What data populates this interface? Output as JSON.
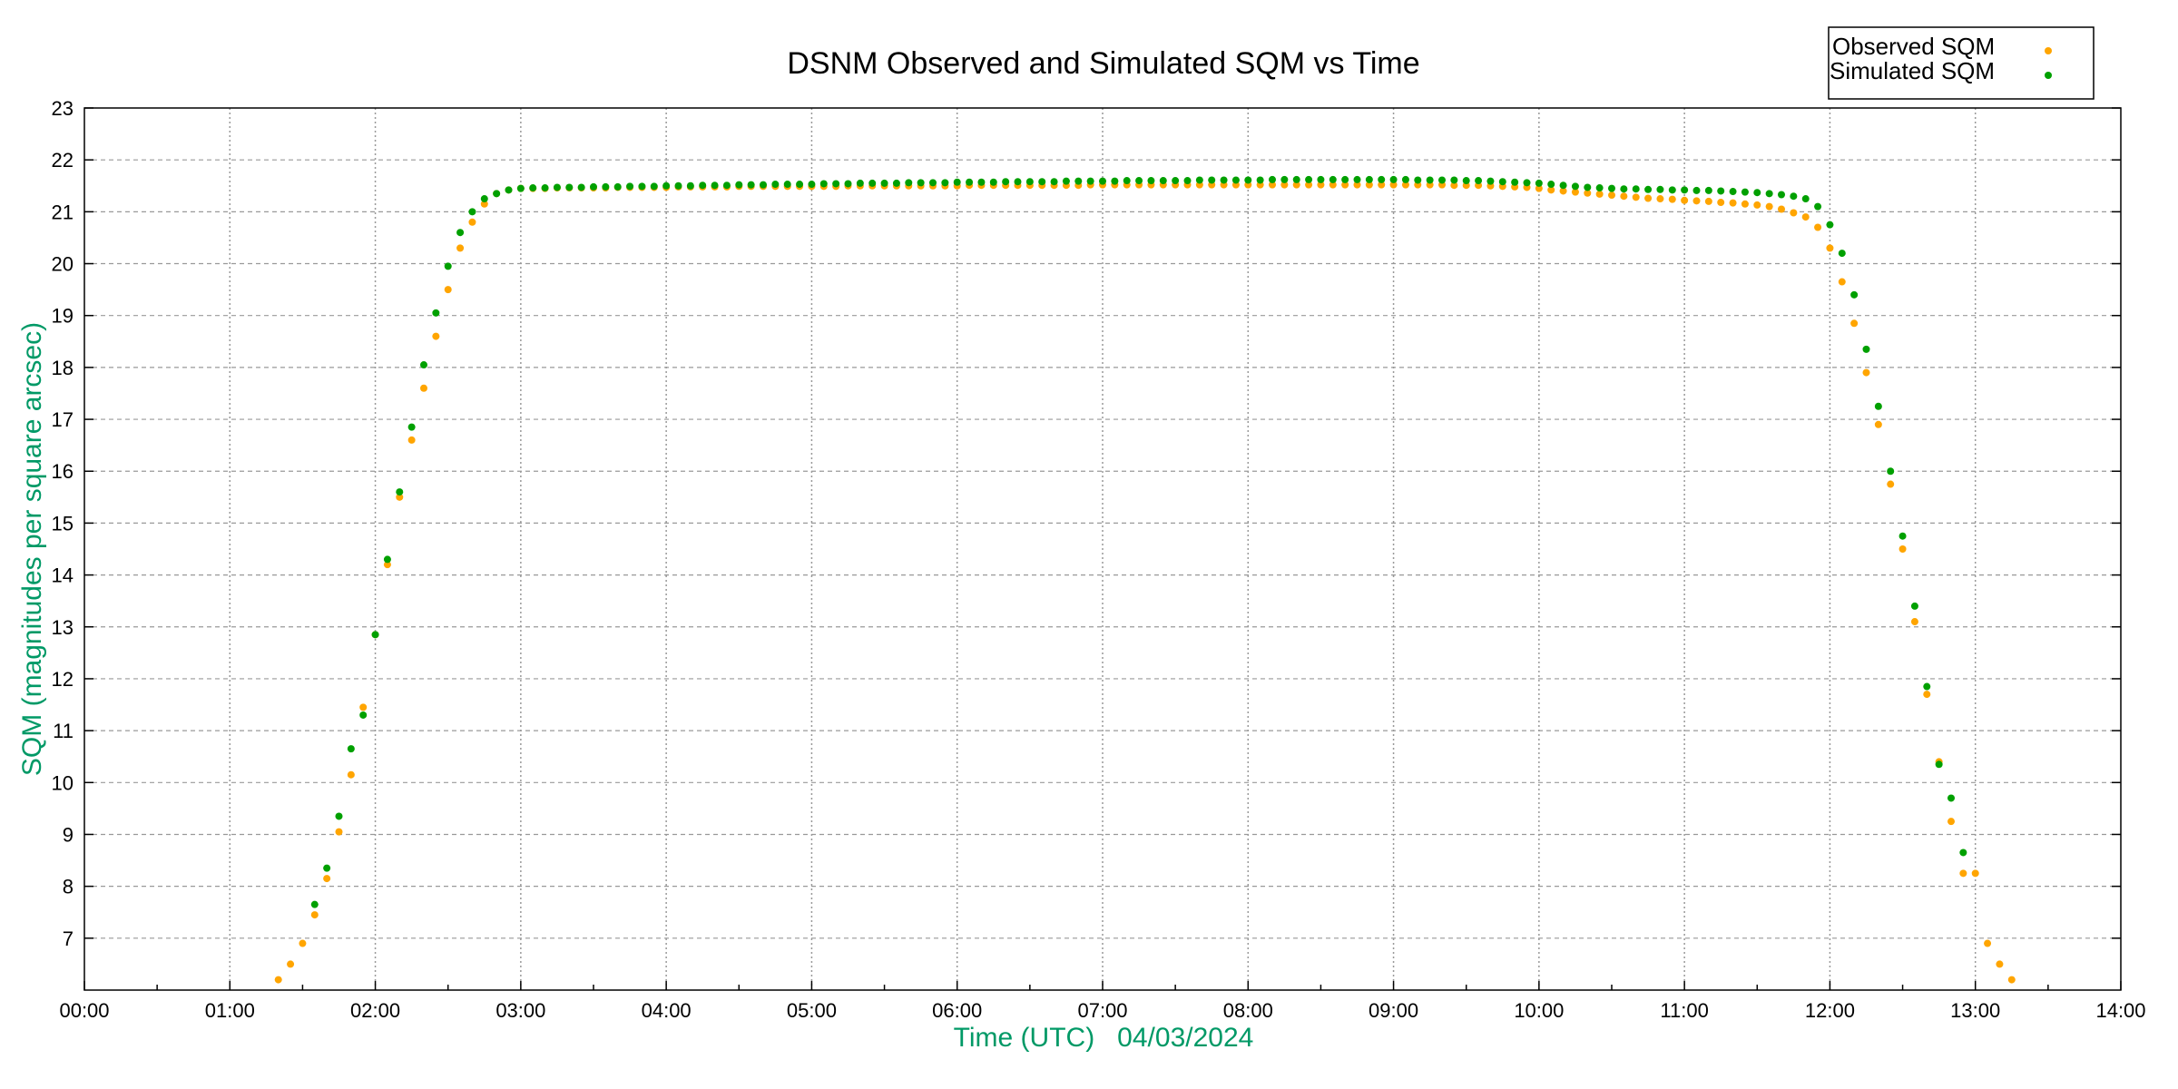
{
  "chart_data": {
    "type": "scatter",
    "title": "DSNM Observed and Simulated SQM vs Time",
    "xlabel": "Time (UTC)   04/03/2024",
    "ylabel": "SQM (magnitudes per square arcsec)",
    "xlim": [
      "00:00",
      "14:00"
    ],
    "ylim": [
      6,
      23
    ],
    "xticks": [
      "00:00",
      "01:00",
      "02:00",
      "03:00",
      "04:00",
      "05:00",
      "06:00",
      "07:00",
      "08:00",
      "09:00",
      "10:00",
      "11:00",
      "12:00",
      "13:00",
      "14:00"
    ],
    "yticks": [
      7,
      8,
      9,
      10,
      11,
      12,
      13,
      14,
      15,
      16,
      17,
      18,
      19,
      20,
      21,
      22,
      23
    ],
    "grid": true,
    "legend_position": "top-right",
    "label_color": "#009966",
    "series": [
      {
        "name": "Observed SQM",
        "color": "#FFA500",
        "x": [
          "01:20",
          "01:25",
          "01:30",
          "01:35",
          "01:40",
          "01:45",
          "01:50",
          "01:55",
          "02:00",
          "02:05",
          "02:10",
          "02:15",
          "02:20",
          "02:25",
          "02:30",
          "02:35",
          "02:40",
          "02:45",
          "02:50",
          "02:55",
          "03:00",
          "03:05",
          "03:10",
          "03:15",
          "03:20",
          "03:25",
          "03:30",
          "03:35",
          "03:40",
          "03:45",
          "03:50",
          "03:55",
          "04:00",
          "04:05",
          "04:10",
          "04:15",
          "04:20",
          "04:25",
          "04:30",
          "04:35",
          "04:40",
          "04:45",
          "04:50",
          "04:55",
          "05:00",
          "05:05",
          "05:10",
          "05:15",
          "05:20",
          "05:25",
          "05:30",
          "05:35",
          "05:40",
          "05:45",
          "05:50",
          "05:55",
          "06:00",
          "06:05",
          "06:10",
          "06:15",
          "06:20",
          "06:25",
          "06:30",
          "06:35",
          "06:40",
          "06:45",
          "06:50",
          "06:55",
          "07:00",
          "07:05",
          "07:10",
          "07:15",
          "07:20",
          "07:25",
          "07:30",
          "07:35",
          "07:40",
          "07:45",
          "07:50",
          "07:55",
          "08:00",
          "08:05",
          "08:10",
          "08:15",
          "08:20",
          "08:25",
          "08:30",
          "08:35",
          "08:40",
          "08:45",
          "08:50",
          "08:55",
          "09:00",
          "09:05",
          "09:10",
          "09:15",
          "09:20",
          "09:25",
          "09:30",
          "09:35",
          "09:40",
          "09:45",
          "09:50",
          "09:55",
          "10:00",
          "10:05",
          "10:10",
          "10:15",
          "10:20",
          "10:25",
          "10:30",
          "10:35",
          "10:40",
          "10:45",
          "10:50",
          "10:55",
          "11:00",
          "11:05",
          "11:10",
          "11:15",
          "11:20",
          "11:25",
          "11:30",
          "11:35",
          "11:40",
          "11:45",
          "11:50",
          "11:55",
          "12:00",
          "12:05",
          "12:10",
          "12:15",
          "12:20",
          "12:25",
          "12:30",
          "12:35",
          "12:40",
          "12:45",
          "12:50",
          "12:55",
          "13:00",
          "13:05",
          "13:10",
          "13:15"
        ],
        "y": [
          6.2,
          6.5,
          6.9,
          7.45,
          8.15,
          9.05,
          10.15,
          11.45,
          12.85,
          14.2,
          15.5,
          16.6,
          17.6,
          18.6,
          19.5,
          20.3,
          20.8,
          21.15,
          21.35,
          21.42,
          21.45,
          21.45,
          21.45,
          21.46,
          21.46,
          21.46,
          21.46,
          21.46,
          21.47,
          21.47,
          21.47,
          21.47,
          21.47,
          21.48,
          21.48,
          21.48,
          21.48,
          21.48,
          21.49,
          21.49,
          21.49,
          21.49,
          21.49,
          21.49,
          21.49,
          21.49,
          21.49,
          21.5,
          21.5,
          21.5,
          21.5,
          21.5,
          21.5,
          21.5,
          21.5,
          21.5,
          21.5,
          21.51,
          21.51,
          21.51,
          21.51,
          21.51,
          21.51,
          21.51,
          21.51,
          21.51,
          21.51,
          21.52,
          21.52,
          21.52,
          21.52,
          21.52,
          21.52,
          21.52,
          21.52,
          21.52,
          21.52,
          21.52,
          21.52,
          21.52,
          21.52,
          21.52,
          21.52,
          21.52,
          21.52,
          21.52,
          21.52,
          21.52,
          21.52,
          21.52,
          21.52,
          21.52,
          21.52,
          21.52,
          21.52,
          21.52,
          21.52,
          21.51,
          21.51,
          21.51,
          21.5,
          21.49,
          21.48,
          21.47,
          21.45,
          21.42,
          21.4,
          21.38,
          21.36,
          21.34,
          21.32,
          21.3,
          21.28,
          21.26,
          21.25,
          21.24,
          21.22,
          21.21,
          21.2,
          21.18,
          21.17,
          21.15,
          21.13,
          21.1,
          21.05,
          20.98,
          20.9,
          20.7,
          20.3,
          19.65,
          18.85,
          17.9,
          16.9,
          15.75,
          14.5,
          13.1,
          11.7,
          10.4,
          9.25,
          8.25,
          8.25,
          6.9,
          6.5,
          6.2
        ]
      },
      {
        "name": "Simulated SQM",
        "color": "#00A000",
        "x": [
          "01:35",
          "01:40",
          "01:45",
          "01:50",
          "01:55",
          "02:00",
          "02:05",
          "02:10",
          "02:15",
          "02:20",
          "02:25",
          "02:30",
          "02:35",
          "02:40",
          "02:45",
          "02:50",
          "02:55",
          "03:00",
          "03:05",
          "03:10",
          "03:15",
          "03:20",
          "03:25",
          "03:30",
          "03:35",
          "03:40",
          "03:45",
          "03:50",
          "03:55",
          "04:00",
          "04:05",
          "04:10",
          "04:15",
          "04:20",
          "04:25",
          "04:30",
          "04:35",
          "04:40",
          "04:45",
          "04:50",
          "04:55",
          "05:00",
          "05:05",
          "05:10",
          "05:15",
          "05:20",
          "05:25",
          "05:30",
          "05:35",
          "05:40",
          "05:45",
          "05:50",
          "05:55",
          "06:00",
          "06:05",
          "06:10",
          "06:15",
          "06:20",
          "06:25",
          "06:30",
          "06:35",
          "06:40",
          "06:45",
          "06:50",
          "06:55",
          "07:00",
          "07:05",
          "07:10",
          "07:15",
          "07:20",
          "07:25",
          "07:30",
          "07:35",
          "07:40",
          "07:45",
          "07:50",
          "07:55",
          "08:00",
          "08:05",
          "08:10",
          "08:15",
          "08:20",
          "08:25",
          "08:30",
          "08:35",
          "08:40",
          "08:45",
          "08:50",
          "08:55",
          "09:00",
          "09:05",
          "09:10",
          "09:15",
          "09:20",
          "09:25",
          "09:30",
          "09:35",
          "09:40",
          "09:45",
          "09:50",
          "09:55",
          "10:00",
          "10:05",
          "10:10",
          "10:15",
          "10:20",
          "10:25",
          "10:30",
          "10:35",
          "10:40",
          "10:45",
          "10:50",
          "10:55",
          "11:00",
          "11:05",
          "11:10",
          "11:15",
          "11:20",
          "11:25",
          "11:30",
          "11:35",
          "11:40",
          "11:45",
          "11:50",
          "11:55",
          "12:00",
          "12:05",
          "12:10",
          "12:15",
          "12:20",
          "12:25",
          "12:30",
          "12:35",
          "12:40",
          "12:45",
          "12:50",
          "12:55"
        ],
        "y": [
          7.65,
          8.35,
          9.35,
          10.65,
          11.3,
          12.85,
          14.3,
          15.6,
          16.85,
          18.05,
          19.05,
          19.95,
          20.6,
          21.0,
          21.25,
          21.35,
          21.42,
          21.45,
          21.46,
          21.46,
          21.47,
          21.47,
          21.47,
          21.48,
          21.48,
          21.48,
          21.49,
          21.49,
          21.49,
          21.5,
          21.5,
          21.5,
          21.51,
          21.51,
          21.51,
          21.52,
          21.52,
          21.52,
          21.53,
          21.53,
          21.53,
          21.53,
          21.54,
          21.54,
          21.54,
          21.55,
          21.55,
          21.55,
          21.55,
          21.56,
          21.56,
          21.56,
          21.56,
          21.57,
          21.57,
          21.57,
          21.57,
          21.58,
          21.58,
          21.58,
          21.58,
          21.58,
          21.59,
          21.59,
          21.59,
          21.59,
          21.59,
          21.6,
          21.6,
          21.6,
          21.6,
          21.6,
          21.6,
          21.61,
          21.61,
          21.61,
          21.61,
          21.61,
          21.61,
          21.62,
          21.62,
          21.62,
          21.62,
          21.62,
          21.62,
          21.62,
          21.62,
          21.62,
          21.62,
          21.62,
          21.62,
          21.61,
          21.61,
          21.61,
          21.61,
          21.6,
          21.6,
          21.59,
          21.58,
          21.57,
          21.56,
          21.55,
          21.53,
          21.51,
          21.49,
          21.47,
          21.46,
          21.45,
          21.44,
          21.44,
          21.43,
          21.43,
          21.42,
          21.42,
          21.41,
          21.41,
          21.4,
          21.39,
          21.38,
          21.37,
          21.35,
          21.33,
          21.3,
          21.25,
          21.1,
          20.75,
          20.2,
          19.4,
          18.35,
          17.25,
          16.0,
          14.75,
          13.4,
          11.85,
          10.35,
          9.7,
          8.65
        ]
      }
    ]
  }
}
